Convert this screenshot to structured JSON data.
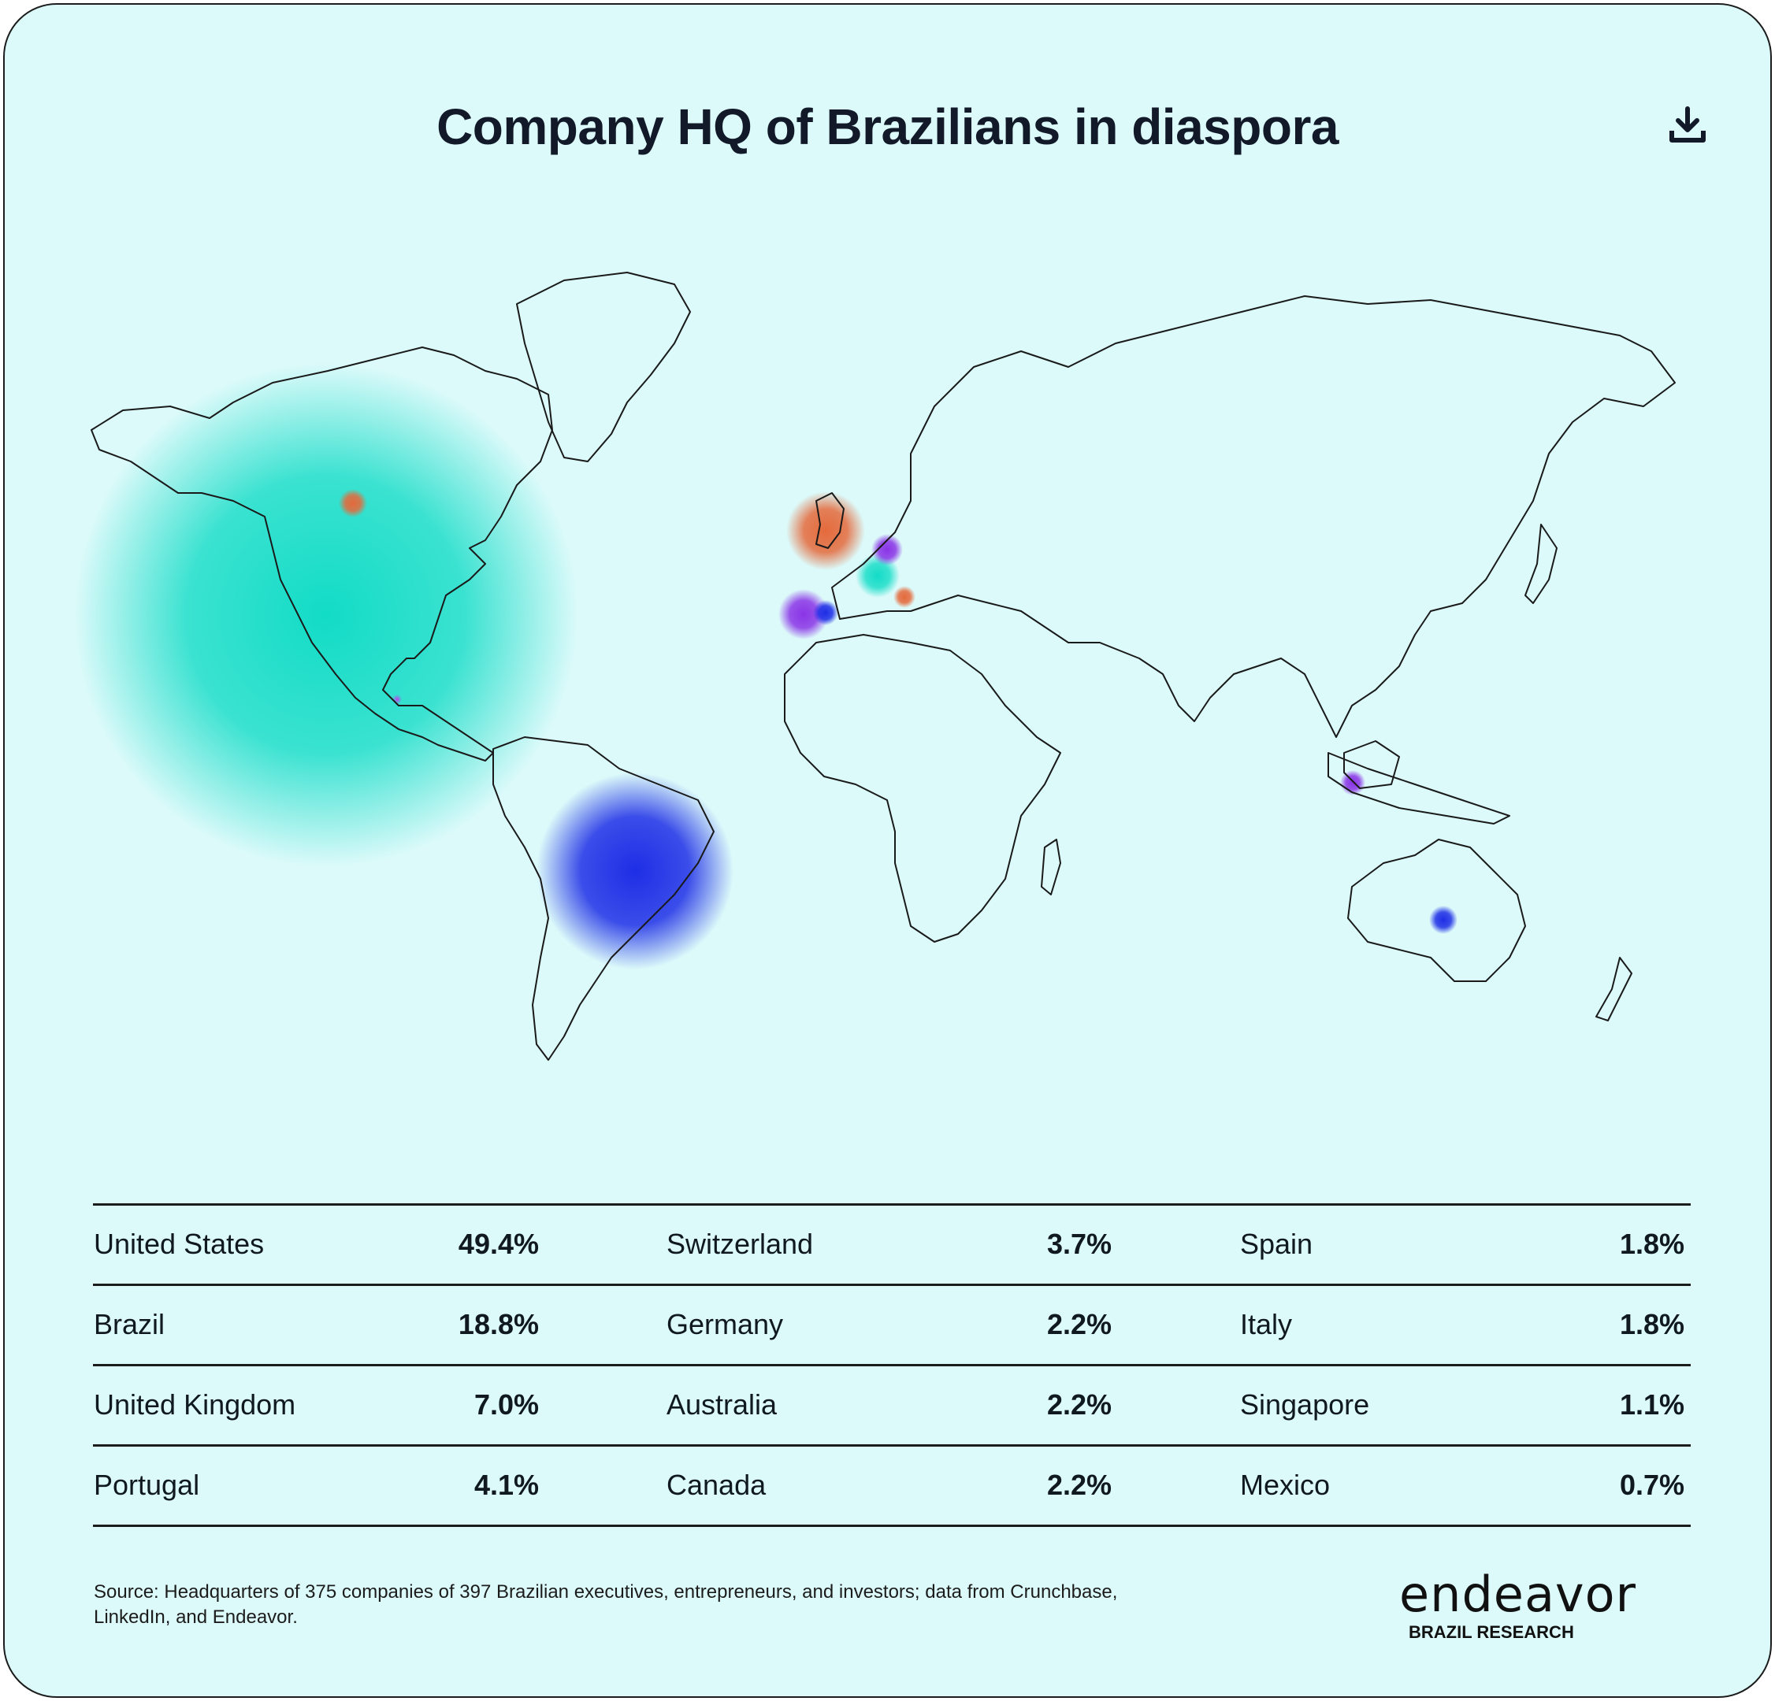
{
  "title": "Company HQ of Brazilians in diaspora",
  "icons": {
    "download": "download-icon"
  },
  "map_markers": [
    {
      "country": "United States",
      "share": 49.4,
      "color": "#12dcc6"
    },
    {
      "country": "Brazil",
      "share": 18.8,
      "color": "#1e2ee6"
    },
    {
      "country": "United Kingdom",
      "share": 7.0,
      "color": "#e46a3c"
    },
    {
      "country": "Portugal",
      "share": 4.1,
      "color": "#8a34e6"
    },
    {
      "country": "Switzerland",
      "share": 3.7,
      "color": "#12dcc6"
    },
    {
      "country": "Germany",
      "share": 2.2,
      "color": "#8a34e6"
    },
    {
      "country": "Australia",
      "share": 2.2,
      "color": "#1e2ee6"
    },
    {
      "country": "Canada",
      "share": 2.2,
      "color": "#e46a3c"
    },
    {
      "country": "Spain",
      "share": 1.8,
      "color": "#1e2ee6"
    },
    {
      "country": "Italy",
      "share": 1.8,
      "color": "#e46a3c"
    },
    {
      "country": "Singapore",
      "share": 1.1,
      "color": "#8a34e6"
    },
    {
      "country": "Mexico",
      "share": 0.7,
      "color": "#c040f0"
    }
  ],
  "table": {
    "rows": [
      [
        {
          "name": "United States",
          "value": "49.4%"
        },
        {
          "name": "Switzerland",
          "value": "3.7%"
        },
        {
          "name": "Spain",
          "value": "1.8%"
        }
      ],
      [
        {
          "name": "Brazil",
          "value": "18.8%"
        },
        {
          "name": "Germany",
          "value": "2.2%"
        },
        {
          "name": "Italy",
          "value": "1.8%"
        }
      ],
      [
        {
          "name": "United Kingdom",
          "value": "7.0%"
        },
        {
          "name": "Australia",
          "value": "2.2%"
        },
        {
          "name": "Singapore",
          "value": "1.1%"
        }
      ],
      [
        {
          "name": "Portugal",
          "value": "4.1%"
        },
        {
          "name": "Canada",
          "value": "2.2%"
        },
        {
          "name": "Mexico",
          "value": "0.7%"
        }
      ]
    ]
  },
  "source": "Source: Headquarters of 375 companies of 397 Brazilian executives, entrepreneurs, and investors; data from Crunchbase, LinkedIn, and Endeavor.",
  "logo": {
    "word": "endeavor",
    "sub": "BRAZIL RESEARCH"
  }
}
